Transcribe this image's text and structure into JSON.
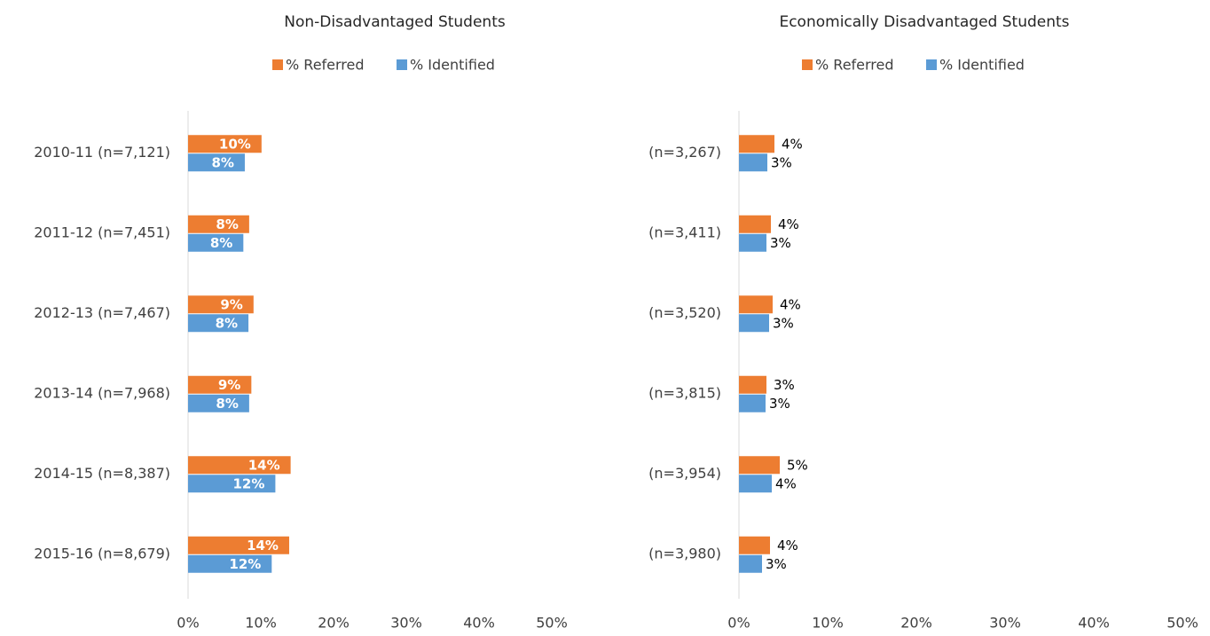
{
  "chart_data": [
    {
      "type": "bar",
      "orientation": "horizontal",
      "title": "Non-Disadvantaged Students",
      "categories": [
        "2010-11 (n=7,121)",
        "2011-12 (n=7,451)",
        "2012-13 (n=7,467)",
        "2013-14 (n=7,968)",
        "2014-15 (n=8,387)",
        "2015-16 (n=8,679)"
      ],
      "series": [
        {
          "name": "% Referred",
          "color": "#ed7d31",
          "values": [
            10.1,
            8.4,
            9.0,
            8.7,
            14.1,
            13.9
          ],
          "value_labels": [
            "10%",
            "8%",
            "9%",
            "9%",
            "14%",
            "14%"
          ]
        },
        {
          "name": "% Identified",
          "color": "#5b9bd5",
          "values": [
            7.8,
            7.6,
            8.3,
            8.4,
            12.0,
            11.5
          ],
          "value_labels": [
            "8%",
            "8%",
            "8%",
            "8%",
            "12%",
            "12%"
          ]
        }
      ],
      "label_position": "inside",
      "xlim": [
        0,
        50
      ],
      "xticks": [
        {
          "value": 0,
          "label": "0%"
        },
        {
          "value": 10,
          "label": "10%"
        },
        {
          "value": 20,
          "label": "20%"
        },
        {
          "value": 30,
          "label": "30%"
        },
        {
          "value": 40,
          "label": "40%"
        },
        {
          "value": 50,
          "label": "50%"
        }
      ],
      "legend": "top",
      "grid": false
    },
    {
      "type": "bar",
      "orientation": "horizontal",
      "title": "Economically Disadvantaged Students",
      "categories": [
        "(n=3,267)",
        "(n=3,411)",
        "(n=3,520)",
        "(n=3,815)",
        "(n=3,954)",
        "(n=3,980)"
      ],
      "series": [
        {
          "name": "% Referred",
          "color": "#ed7d31",
          "values": [
            4.0,
            3.6,
            3.8,
            3.1,
            4.6,
            3.5
          ],
          "value_labels": [
            "4%",
            "4%",
            "4%",
            "3%",
            "5%",
            "4%"
          ]
        },
        {
          "name": "% Identified",
          "color": "#5b9bd5",
          "values": [
            3.2,
            3.1,
            3.4,
            3.0,
            3.7,
            2.6
          ],
          "value_labels": [
            "3%",
            "3%",
            "3%",
            "3%",
            "4%",
            "3%"
          ]
        }
      ],
      "label_position": "outside",
      "xlim": [
        0,
        50
      ],
      "xticks": [
        {
          "value": 0,
          "label": "0%"
        },
        {
          "value": 10,
          "label": "10%"
        },
        {
          "value": 20,
          "label": "20%"
        },
        {
          "value": 30,
          "label": "30%"
        },
        {
          "value": 40,
          "label": "40%"
        },
        {
          "value": 50,
          "label": "50%"
        }
      ],
      "legend": "top",
      "grid": false
    }
  ]
}
